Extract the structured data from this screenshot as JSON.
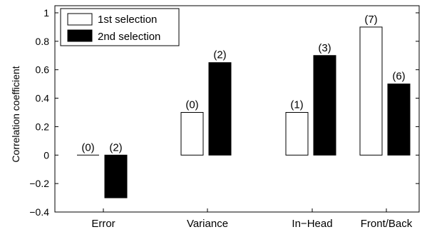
{
  "chart_data": {
    "type": "bar",
    "categories": [
      "Error",
      "Variance",
      "In−Head",
      "Front/Back"
    ],
    "series": [
      {
        "name": "1st selection",
        "values": [
          0.0,
          0.3,
          0.3,
          0.9
        ],
        "counts": [
          "(0)",
          "(0)",
          "(1)",
          "(7)"
        ],
        "fill": "#ffffff",
        "stroke": "#000000"
      },
      {
        "name": "2nd selection",
        "values": [
          -0.3,
          0.65,
          0.7,
          0.5
        ],
        "counts": [
          "(2)",
          "(2)",
          "(3)",
          "(6)"
        ],
        "fill": "#000000",
        "stroke": "#000000"
      }
    ],
    "ylabel": "Correlation coefficient",
    "ylim": [
      -0.4,
      1.05
    ],
    "yticks": [
      -0.4,
      -0.2,
      0,
      0.2,
      0.4,
      0.6,
      0.8,
      1
    ],
    "ytick_labels": [
      "−0.4",
      "−0.2",
      "0",
      "0.2",
      "0.4",
      "0.6",
      "0.8",
      "1"
    ],
    "legend_position": "top-left",
    "grid": false
  }
}
